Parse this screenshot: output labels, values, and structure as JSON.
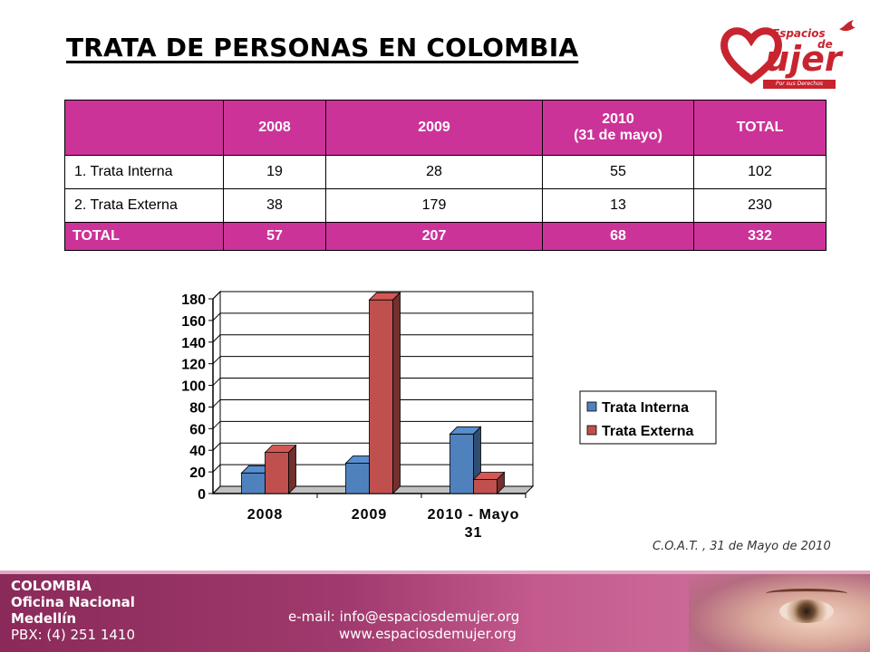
{
  "title": "TRATA DE PERSONAS EN COLOMBIA",
  "logo": {
    "line1": "Espacios",
    "line2": "de",
    "line3": "ujer",
    "tagline": "Por sus Derechos",
    "color": "#c8242f"
  },
  "table": {
    "headers": [
      "",
      "2008",
      "2009",
      "2010",
      "(31 de mayo)",
      "TOTAL"
    ],
    "rows": [
      {
        "label": "1. Trata Interna",
        "c2008": "19",
        "c2009": "28",
        "c2010": "55",
        "total": "102"
      },
      {
        "label": "2. Trata Externa",
        "c2008": "38",
        "c2009": "179",
        "c2010": "13",
        "total": "230"
      }
    ],
    "total_row": {
      "label": "TOTAL",
      "c2008": "57",
      "c2009": "207",
      "c2010": "68",
      "total": "332"
    },
    "header_color": "#cc3399"
  },
  "chart_data": {
    "type": "bar",
    "categories": [
      "2008",
      "2009",
      "2010 - Mayo 31"
    ],
    "category_lines": [
      [
        "2008"
      ],
      [
        "2009"
      ],
      [
        "2010 - Mayo",
        "31"
      ]
    ],
    "series": [
      {
        "name": "Trata Interna",
        "values": [
          19,
          28,
          55
        ],
        "color": "#4f81bd"
      },
      {
        "name": "Trata Externa",
        "values": [
          38,
          179,
          13
        ],
        "color": "#c0504d"
      }
    ],
    "ylim": [
      0,
      180
    ],
    "yticks": [
      0,
      20,
      40,
      60,
      80,
      100,
      120,
      140,
      160,
      180
    ],
    "grid": true,
    "legend": "right",
    "style": "3d"
  },
  "source": "C.O.A.T. , 31 de Mayo de 2010",
  "footer": {
    "country": "COLOMBIA",
    "office": "Oficina Nacional",
    "city": "Medellín",
    "phone": "PBX: (4) 251 1410",
    "email": "e-mail: info@espaciosdemujer.org",
    "web": "www.espaciosdemujer.org"
  }
}
